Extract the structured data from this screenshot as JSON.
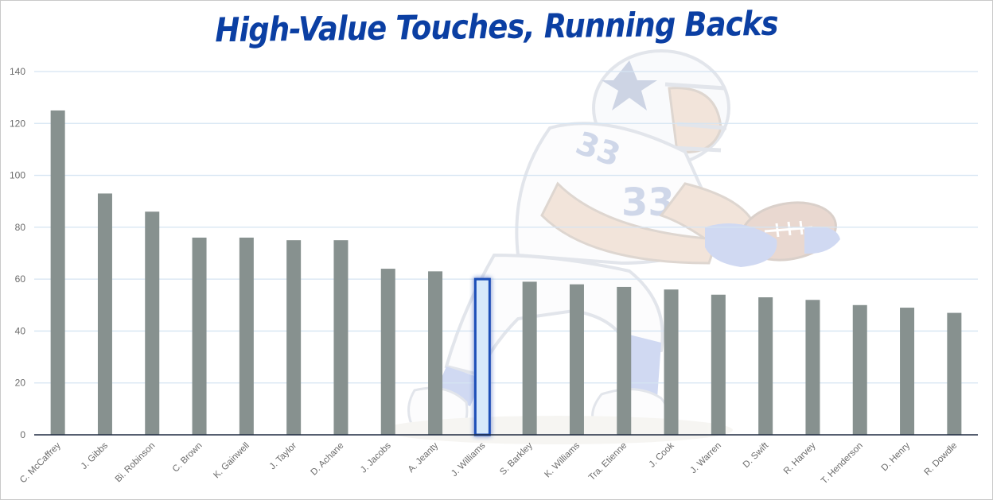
{
  "chart_data": {
    "type": "bar",
    "title": "High-Value Touches, Running Backs",
    "xlabel": "",
    "ylabel": "",
    "ylim": [
      0,
      140
    ],
    "yticks": [
      0,
      20,
      40,
      60,
      80,
      100,
      120,
      140
    ],
    "grid": true,
    "legend": "none",
    "categories": [
      "C. McCaffrey",
      "J. Gibbs",
      "Bi. Robinson",
      "C. Brown",
      "K. Gainwell",
      "J. Taylor",
      "D. Achane",
      "J. Jacobs",
      "A. Jeanty",
      "J. Williams",
      "S. Barkley",
      "K. Williams",
      "Tra. Etienne",
      "J. Cook",
      "J. Warren",
      "D. Swift",
      "R. Harvey",
      "T. Henderson",
      "D. Henry",
      "R. Dowdle"
    ],
    "values": [
      125,
      93,
      86,
      76,
      76,
      75,
      75,
      64,
      63,
      60,
      59,
      58,
      57,
      56,
      54,
      53,
      52,
      50,
      49,
      47
    ],
    "highlight": "J. Williams",
    "colors": {
      "bar": "#87918f",
      "highlight_fill": "#d6e9fb",
      "highlight_stroke": "#1f4fb8",
      "grid": "#d5e4f2",
      "axis": "#1e2a40",
      "title": "#0b3fa3"
    },
    "background_image": "football-running-back-illustration"
  }
}
